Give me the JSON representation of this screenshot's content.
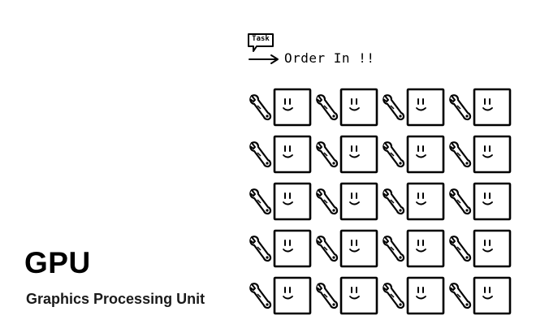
{
  "title": "GPU",
  "subtitle": "Graphics Processing Unit",
  "task": {
    "label": "Task",
    "order_text": "Order In !!"
  },
  "grid": {
    "rows": 5,
    "columns": 4,
    "worker_icon": "wrench-icon",
    "core_icon": "smiley-box-icon"
  }
}
